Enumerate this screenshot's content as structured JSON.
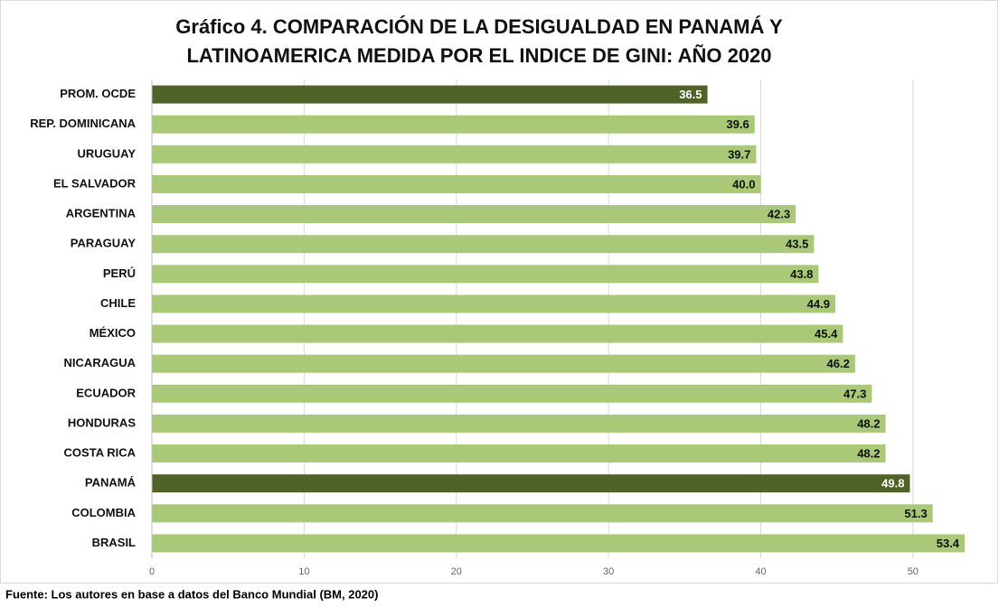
{
  "chart_data": {
    "type": "bar",
    "orientation": "horizontal",
    "title": [
      "Gráfico 4. COMPARACIÓN DE LA DESIGUALDAD EN PANAMÁ Y",
      "LATINOAMERICA MEDIDA POR EL INDICE DE GINI: AÑO 2020"
    ],
    "categories": [
      "PROM. OCDE",
      "REP. DOMINICANA",
      "URUGUAY",
      "EL SALVADOR",
      "ARGENTINA",
      "PARAGUAY",
      "PERÚ",
      "CHILE",
      "MÉXICO",
      "NICARAGUA",
      "ECUADOR",
      "HONDURAS",
      "COSTA RICA",
      "PANAMÁ",
      "COLOMBIA",
      "BRASIL"
    ],
    "values": [
      36.5,
      39.6,
      39.7,
      40.0,
      42.3,
      43.5,
      43.8,
      44.9,
      45.4,
      46.2,
      47.3,
      48.2,
      48.2,
      49.8,
      51.3,
      53.4
    ],
    "value_labels": [
      "36.5",
      "39.6",
      "39.7",
      "40.0",
      "42.3",
      "43.5",
      "43.8",
      "44.9",
      "45.4",
      "46.2",
      "47.3",
      "48.2",
      "48.2",
      "49.8",
      "51.3",
      "53.4"
    ],
    "colors": [
      "#4f6228",
      "#a9c978",
      "#a9c978",
      "#a9c978",
      "#a9c978",
      "#a9c978",
      "#a9c978",
      "#a9c978",
      "#a9c978",
      "#a9c978",
      "#a9c978",
      "#a9c978",
      "#a9c978",
      "#4f6228",
      "#a9c978",
      "#a9c978"
    ],
    "xlim": [
      0,
      55
    ],
    "xticks": [
      0,
      10,
      20,
      30,
      40,
      50
    ],
    "grid": true,
    "source": "Fuente: Los autores en base a datos del Banco Mundial (BM, 2020)"
  }
}
